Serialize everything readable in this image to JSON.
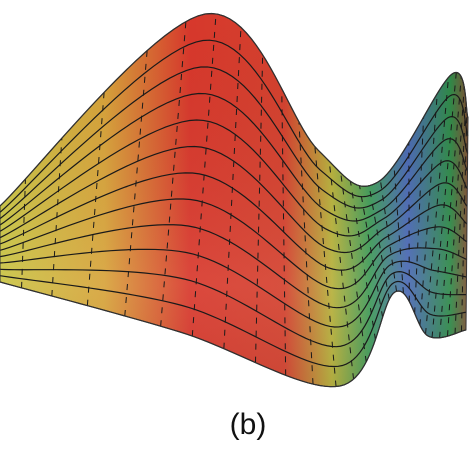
{
  "caption": "(b)"
}
